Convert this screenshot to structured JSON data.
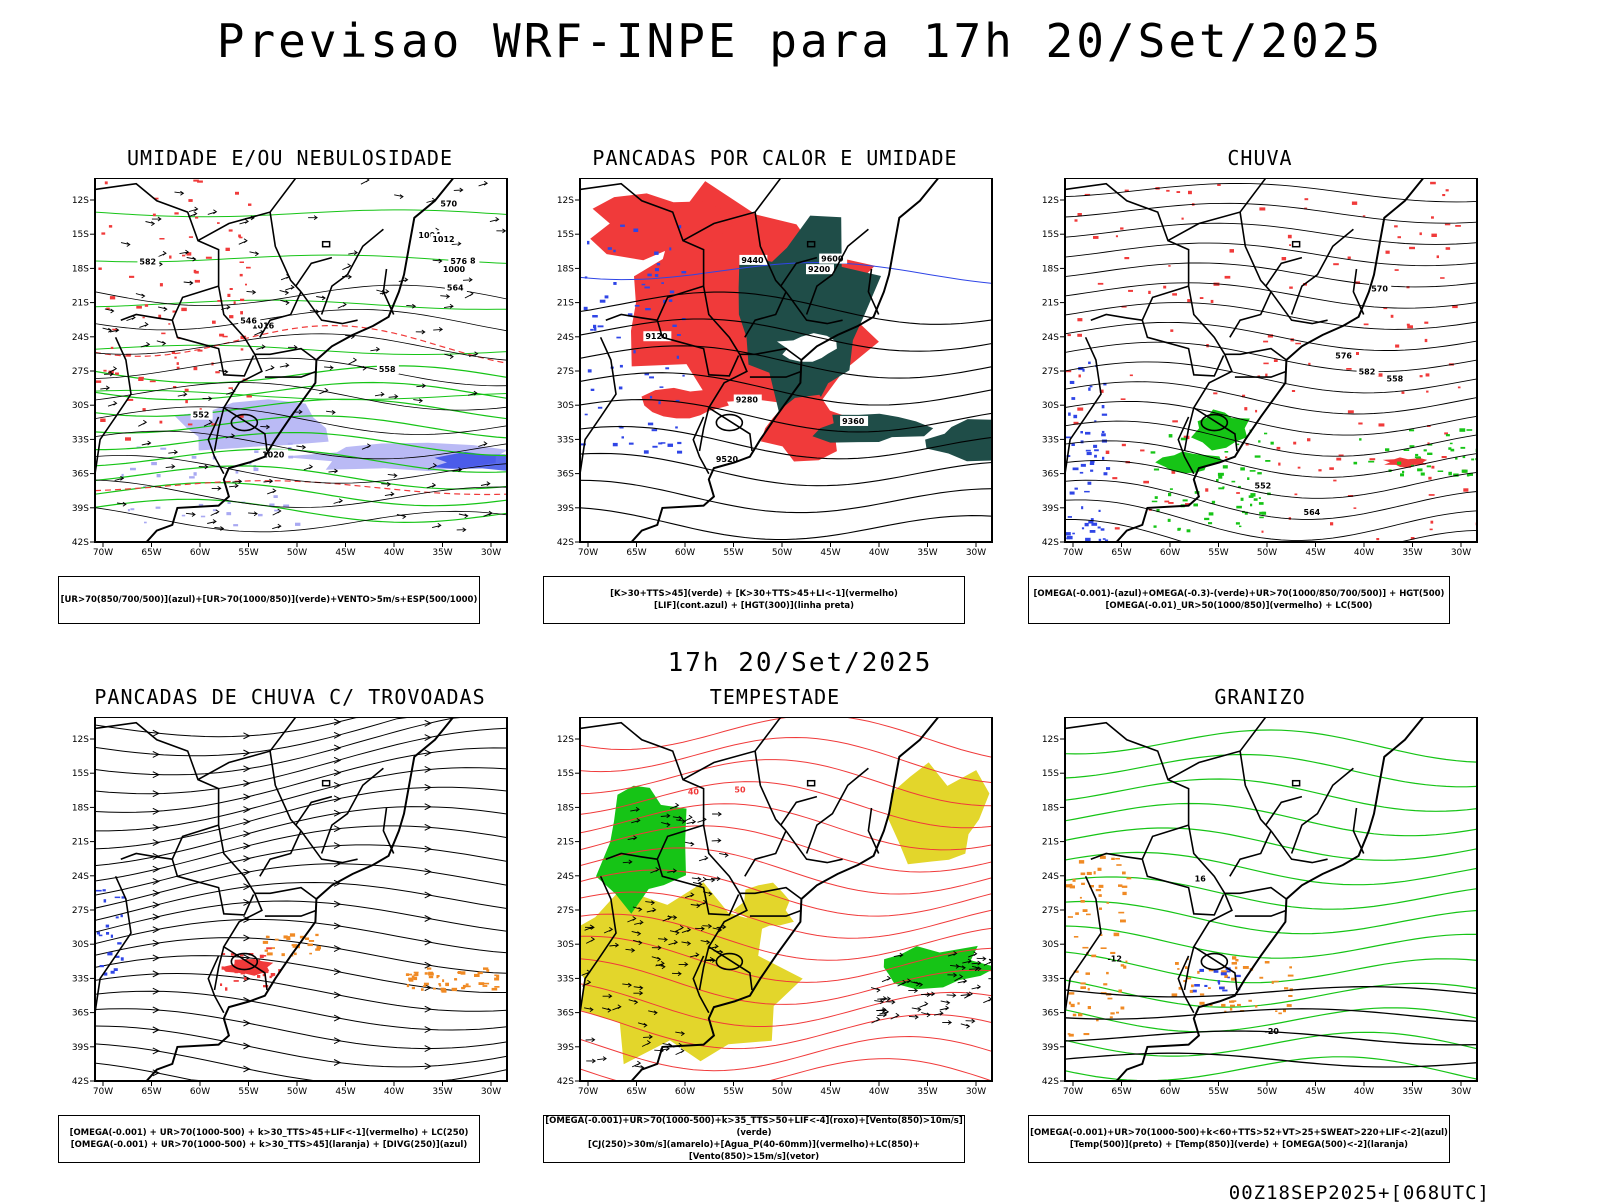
{
  "title": "Previsao WRF-INPE  para 17h 20/Set/2025",
  "mid_title": "17h 20/Set/2025",
  "footer": "00Z18SEP2025+[068UTC]",
  "lat_labels": [
    "12S",
    "15S",
    "18S",
    "21S",
    "24S",
    "27S",
    "30S",
    "33S",
    "36S",
    "39S",
    "42S"
  ],
  "lon_labels": [
    "70W",
    "65W",
    "60W",
    "55W",
    "50W",
    "45W",
    "40W",
    "35W",
    "30W"
  ],
  "colors": {
    "red": "#f03a3a",
    "blue": "#2f45e6",
    "green": "#16c416",
    "dark_teal": "#1f4d48",
    "yellow": "#e3d62b",
    "orange": "#f08a24",
    "lavender": "#a9a9f2"
  },
  "panels": [
    {
      "title": "UMIDADE E/OU NEBULOSIDADE",
      "legend": [
        "[UR>70(850/700/500)](azul)+[UR>70(1000/850)](verde)+VENTO>5m/s+ESP(500/1000)"
      ],
      "labels": [
        "1004",
        "1008",
        "1012",
        "1016",
        "1020",
        "1000",
        "570",
        "582",
        "576",
        "564",
        "552",
        "546",
        "558"
      ]
    },
    {
      "title": "PANCADAS POR CALOR E UMIDADE",
      "legend": [
        "[K>30+TTS>45](verde)  +  [K>30+TTS>45+LI<-1](vermelho)",
        "[LIF](cont.azul)  +  [HGT(300)](linha preta)"
      ],
      "labels": [
        "9600",
        "9520",
        "9440",
        "9360",
        "9280",
        "9200",
        "9120"
      ]
    },
    {
      "title": "CHUVA",
      "legend": [
        "[OMEGA(-0.001)-(azul)+OMEGA(-0.3)-(verde)+UR>70(1000/850/700/500)]  +  HGT(500)",
        "[OMEGA(-0.01)_UR>50(1000/850)](vermelho)  +  LC(500)"
      ],
      "labels": [
        "582",
        "576",
        "570",
        "564",
        "558",
        "552"
      ]
    },
    {
      "title": "PANCADAS DE CHUVA C/ TROVOADAS",
      "legend": [
        "[OMEGA(-0.001)  +  UR>70(1000-500)  +  k>30_TTS>45+LIF<-1](vermelho)  +  LC(250)",
        "[OMEGA(-0.001)  +  UR>70(1000-500)  +  k>30_TTS>45](laranja)  +  [DIVG(250)](azul)"
      ],
      "labels": []
    },
    {
      "title": "TEMPESTADE",
      "legend": [
        "[OMEGA(-0.001)+UR>70(1000-500)+k>35_TTS>50+LIF<-4](roxo)+[Vento(850)>10m/s](verde)",
        "[CJ(250)>30m/s](amarelo)+[Agua_P(40-60mm)](vermelho)+LC(850)+[Vento(850)>15m/s](vetor)"
      ],
      "labels": [
        "40",
        "50"
      ]
    },
    {
      "title": "GRANIZO",
      "legend": [
        "[OMEGA(-0.001)+UR>70(1000-500)+k<60+TTS>52+VT>25+SWEAT>220+LIF<-2](azul)",
        "[Temp(500)](preto)  +  [Temp(850)](verde)  +  [OMEGA(500)<-2](laranja)"
      ],
      "labels": [
        "-12",
        "-20",
        "16"
      ]
    }
  ]
}
